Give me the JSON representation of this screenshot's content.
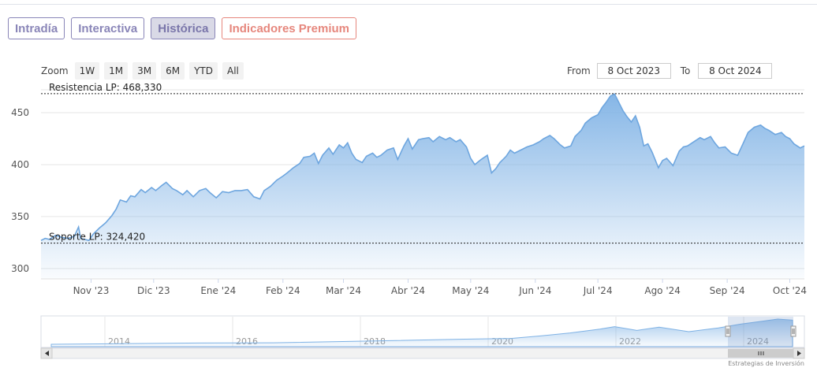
{
  "tabs": [
    {
      "label": "Intradía",
      "active": false
    },
    {
      "label": "Interactiva",
      "active": false
    },
    {
      "label": "Histórica",
      "active": true
    },
    {
      "label": "Indicadores Premium",
      "premium": true
    }
  ],
  "zoom": {
    "label": "Zoom",
    "buttons": [
      "1W",
      "1M",
      "3M",
      "6M",
      "YTD",
      "All"
    ]
  },
  "range": {
    "from_label": "From",
    "from_value": "8 Oct 2023",
    "to_label": "To",
    "to_value": "8 Oct 2024"
  },
  "watermark": "Estrategias de Inversión",
  "colors": {
    "line": "#6ea6df",
    "fill_top": "#7fb2e5",
    "tab": "#8a86b8",
    "premium": "#e6877d"
  },
  "chart_data": {
    "type": "area",
    "x_start": "2023-10-08",
    "x_end": "2024-10-08",
    "ylim": [
      290,
      472
    ],
    "y_ticks": [
      300,
      350,
      400,
      450
    ],
    "x_ticks": [
      {
        "label": "Nov '23",
        "date": "2023-11-01"
      },
      {
        "label": "Dic '23",
        "date": "2023-12-01"
      },
      {
        "label": "Ene '24",
        "date": "2024-01-01"
      },
      {
        "label": "Feb '24",
        "date": "2024-02-01"
      },
      {
        "label": "Mar '24",
        "date": "2024-03-01"
      },
      {
        "label": "Abr '24",
        "date": "2024-04-01"
      },
      {
        "label": "May '24",
        "date": "2024-05-01"
      },
      {
        "label": "Jun '24",
        "date": "2024-06-01"
      },
      {
        "label": "Jul '24",
        "date": "2024-07-01"
      },
      {
        "label": "Ago '24",
        "date": "2024-08-01"
      },
      {
        "label": "Sep '24",
        "date": "2024-09-01"
      },
      {
        "label": "Oct '24",
        "date": "2024-10-01"
      }
    ],
    "lines": [
      {
        "label": "Resistencia LP: 468,330",
        "value": 468.33
      },
      {
        "label": "Soporte LP: 324,420",
        "value": 324.42
      }
    ],
    "series": [
      {
        "values": [
          [
            "2023-10-08",
            327
          ],
          [
            "2023-10-10",
            329
          ],
          [
            "2023-10-12",
            328
          ],
          [
            "2023-10-15",
            332
          ],
          [
            "2023-10-18",
            330
          ],
          [
            "2023-10-21",
            329
          ],
          [
            "2023-10-24",
            331
          ],
          [
            "2023-10-26",
            340
          ],
          [
            "2023-10-27",
            329
          ],
          [
            "2023-10-31",
            327
          ],
          [
            "2023-11-02",
            333
          ],
          [
            "2023-11-05",
            339
          ],
          [
            "2023-11-08",
            344
          ],
          [
            "2023-11-11",
            351
          ],
          [
            "2023-11-13",
            357
          ],
          [
            "2023-11-15",
            366
          ],
          [
            "2023-11-18",
            364
          ],
          [
            "2023-11-20",
            370
          ],
          [
            "2023-11-22",
            369
          ],
          [
            "2023-11-25",
            376
          ],
          [
            "2023-11-27",
            373
          ],
          [
            "2023-11-30",
            378
          ],
          [
            "2023-12-02",
            375
          ],
          [
            "2023-12-05",
            380
          ],
          [
            "2023-12-07",
            383
          ],
          [
            "2023-12-10",
            377
          ],
          [
            "2023-12-12",
            375
          ],
          [
            "2023-12-15",
            371
          ],
          [
            "2023-12-17",
            375
          ],
          [
            "2023-12-20",
            369
          ],
          [
            "2023-12-23",
            375
          ],
          [
            "2023-12-26",
            377
          ],
          [
            "2023-12-28",
            373
          ],
          [
            "2023-12-31",
            368
          ],
          [
            "2024-01-03",
            374
          ],
          [
            "2024-01-06",
            373
          ],
          [
            "2024-01-09",
            375
          ],
          [
            "2024-01-12",
            375
          ],
          [
            "2024-01-15",
            376
          ],
          [
            "2024-01-18",
            369
          ],
          [
            "2024-01-21",
            367
          ],
          [
            "2024-01-23",
            375
          ],
          [
            "2024-01-26",
            379
          ],
          [
            "2024-01-29",
            385
          ],
          [
            "2024-02-01",
            389
          ],
          [
            "2024-02-03",
            392
          ],
          [
            "2024-02-06",
            397
          ],
          [
            "2024-02-09",
            401
          ],
          [
            "2024-02-11",
            407
          ],
          [
            "2024-02-14",
            408
          ],
          [
            "2024-02-16",
            411
          ],
          [
            "2024-02-18",
            401
          ],
          [
            "2024-02-20",
            409
          ],
          [
            "2024-02-23",
            416
          ],
          [
            "2024-02-25",
            410
          ],
          [
            "2024-02-28",
            419
          ],
          [
            "2024-03-01",
            416
          ],
          [
            "2024-03-03",
            421
          ],
          [
            "2024-03-05",
            411
          ],
          [
            "2024-03-07",
            405
          ],
          [
            "2024-03-10",
            402
          ],
          [
            "2024-03-12",
            408
          ],
          [
            "2024-03-15",
            411
          ],
          [
            "2024-03-17",
            407
          ],
          [
            "2024-03-19",
            409
          ],
          [
            "2024-03-22",
            414
          ],
          [
            "2024-03-25",
            416
          ],
          [
            "2024-03-27",
            405
          ],
          [
            "2024-03-30",
            418
          ],
          [
            "2024-04-01",
            425
          ],
          [
            "2024-04-03",
            415
          ],
          [
            "2024-04-06",
            424
          ],
          [
            "2024-04-08",
            425
          ],
          [
            "2024-04-11",
            426
          ],
          [
            "2024-04-13",
            422
          ],
          [
            "2024-04-16",
            427
          ],
          [
            "2024-04-19",
            424
          ],
          [
            "2024-04-21",
            426
          ],
          [
            "2024-04-24",
            422
          ],
          [
            "2024-04-26",
            424
          ],
          [
            "2024-04-29",
            417
          ],
          [
            "2024-05-01",
            406
          ],
          [
            "2024-05-03",
            400
          ],
          [
            "2024-05-06",
            405
          ],
          [
            "2024-05-09",
            409
          ],
          [
            "2024-05-11",
            392
          ],
          [
            "2024-05-13",
            396
          ],
          [
            "2024-05-15",
            402
          ],
          [
            "2024-05-18",
            408
          ],
          [
            "2024-05-20",
            414
          ],
          [
            "2024-05-22",
            411
          ],
          [
            "2024-05-25",
            414
          ],
          [
            "2024-05-28",
            417
          ],
          [
            "2024-05-31",
            419
          ],
          [
            "2024-06-03",
            422
          ],
          [
            "2024-06-05",
            425
          ],
          [
            "2024-06-08",
            428
          ],
          [
            "2024-06-10",
            425
          ],
          [
            "2024-06-13",
            419
          ],
          [
            "2024-06-15",
            416
          ],
          [
            "2024-06-18",
            418
          ],
          [
            "2024-06-20",
            427
          ],
          [
            "2024-06-23",
            433
          ],
          [
            "2024-06-25",
            440
          ],
          [
            "2024-06-28",
            445
          ],
          [
            "2024-07-01",
            448
          ],
          [
            "2024-07-03",
            455
          ],
          [
            "2024-07-05",
            460
          ],
          [
            "2024-07-07",
            466
          ],
          [
            "2024-07-09",
            468
          ],
          [
            "2024-07-11",
            460
          ],
          [
            "2024-07-13",
            452
          ],
          [
            "2024-07-15",
            446
          ],
          [
            "2024-07-17",
            441
          ],
          [
            "2024-07-19",
            447
          ],
          [
            "2024-07-21",
            436
          ],
          [
            "2024-07-23",
            418
          ],
          [
            "2024-07-25",
            420
          ],
          [
            "2024-07-27",
            412
          ],
          [
            "2024-07-30",
            397
          ],
          [
            "2024-08-01",
            404
          ],
          [
            "2024-08-03",
            406
          ],
          [
            "2024-08-06",
            399
          ],
          [
            "2024-08-09",
            413
          ],
          [
            "2024-08-11",
            417
          ],
          [
            "2024-08-13",
            418
          ],
          [
            "2024-08-16",
            422
          ],
          [
            "2024-08-19",
            426
          ],
          [
            "2024-08-21",
            424
          ],
          [
            "2024-08-24",
            427
          ],
          [
            "2024-08-26",
            421
          ],
          [
            "2024-08-28",
            416
          ],
          [
            "2024-08-31",
            417
          ],
          [
            "2024-09-03",
            411
          ],
          [
            "2024-09-06",
            409
          ],
          [
            "2024-09-09",
            422
          ],
          [
            "2024-09-11",
            431
          ],
          [
            "2024-09-14",
            436
          ],
          [
            "2024-09-17",
            438
          ],
          [
            "2024-09-19",
            435
          ],
          [
            "2024-09-21",
            433
          ],
          [
            "2024-09-24",
            429
          ],
          [
            "2024-09-27",
            431
          ],
          [
            "2024-09-29",
            427
          ],
          [
            "2024-10-01",
            425
          ],
          [
            "2024-10-03",
            420
          ],
          [
            "2024-10-06",
            416
          ],
          [
            "2024-10-08",
            418
          ]
        ]
      }
    ],
    "navigator": {
      "tick_labels": [
        "2014",
        "2016",
        "2018",
        "2020",
        "2022",
        "2024"
      ]
    }
  }
}
